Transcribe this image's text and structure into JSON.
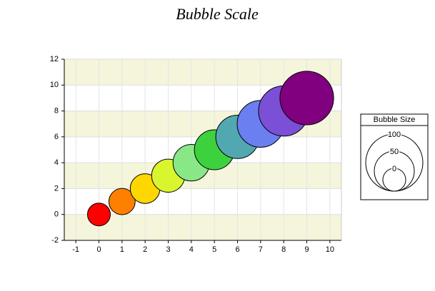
{
  "chart_data": {
    "type": "bubble",
    "title": "Bubble Scale",
    "x": [
      0,
      1,
      2,
      3,
      4,
      5,
      6,
      7,
      8,
      9
    ],
    "values": [
      0,
      1,
      2,
      3,
      4,
      5,
      6,
      7,
      8,
      9
    ],
    "sizes": [
      0,
      10,
      20,
      30,
      40,
      50,
      60,
      70,
      80,
      90
    ],
    "colors": [
      "#ff0000",
      "#ff8000",
      "#ffd700",
      "#d9f52d",
      "#88e888",
      "#3ed13e",
      "#52a8b0",
      "#6b7ff0",
      "#7b4fd6",
      "#800080"
    ],
    "xlim": [
      -1.5,
      10.5
    ],
    "xticks": [
      -1,
      0,
      1,
      2,
      3,
      4,
      5,
      6,
      7,
      8,
      9,
      10
    ],
    "ylim": [
      -2,
      12
    ],
    "yticks": [
      -2,
      0,
      2,
      4,
      6,
      8,
      10,
      12
    ],
    "grid": true,
    "band_color": "#f5f5dc",
    "size_legend": {
      "title": "Bubble Size",
      "values": [
        100,
        50,
        0
      ]
    }
  }
}
